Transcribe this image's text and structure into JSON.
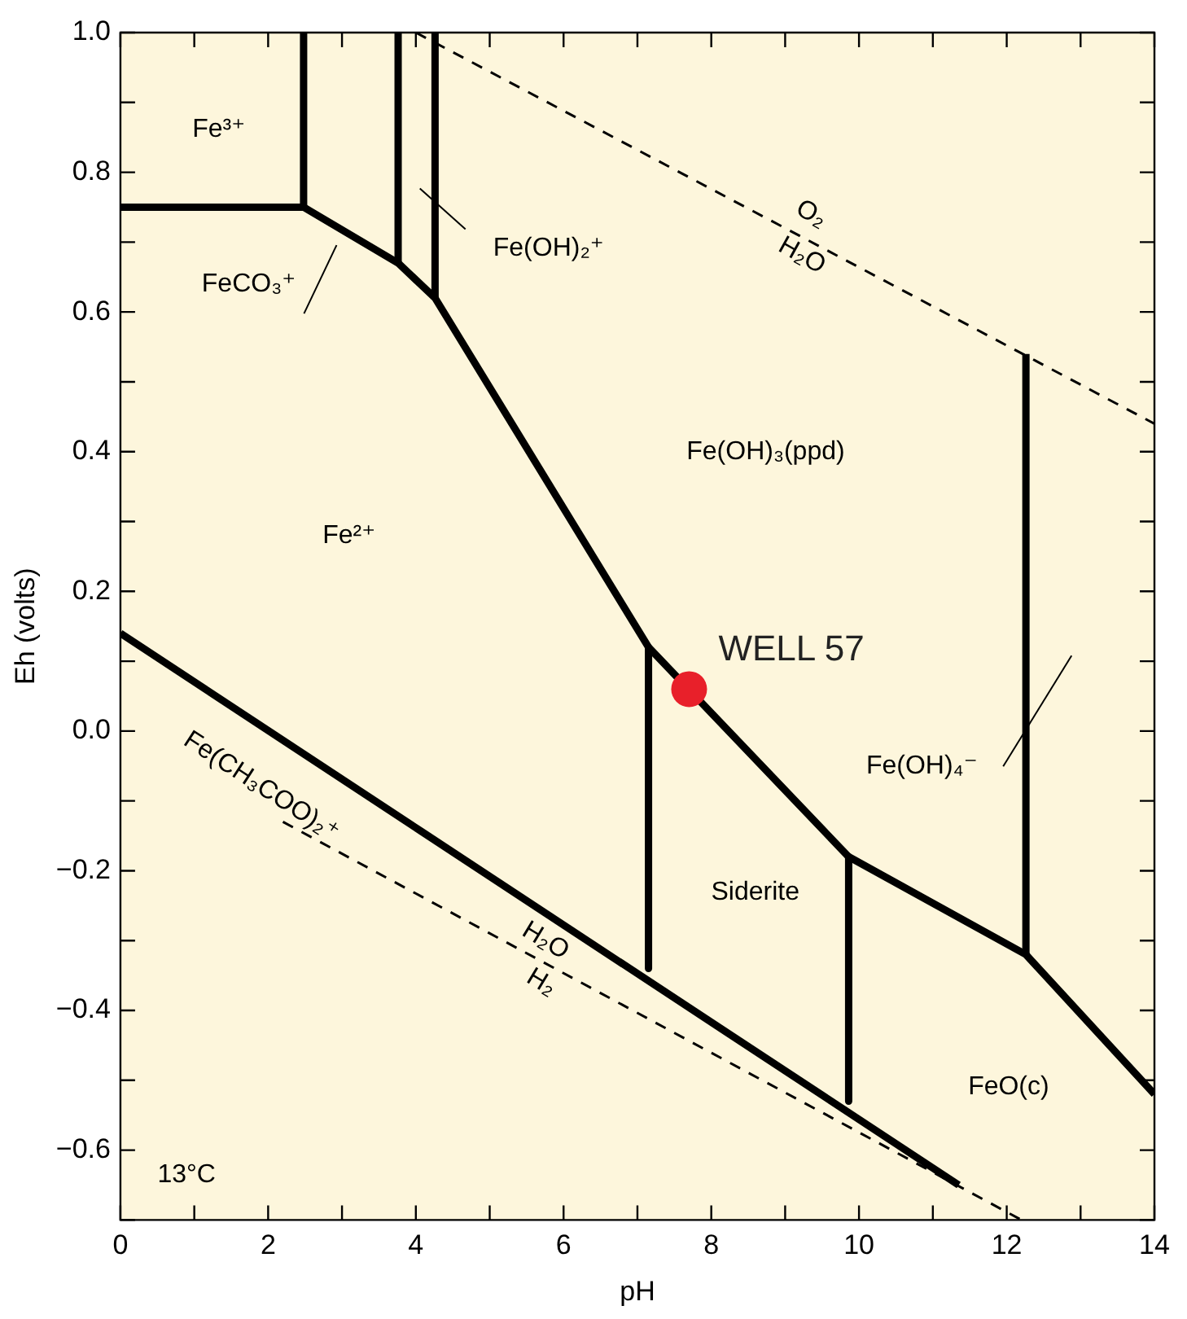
{
  "chart_data": {
    "type": "line",
    "xlabel": "pH",
    "ylabel": "Eh (volts)",
    "xlim": [
      0,
      14
    ],
    "ylim": [
      -0.7,
      1.0
    ],
    "xticks": [
      0,
      {
        "value": 1,
        "label": null
      },
      2,
      {
        "value": 3,
        "label": null
      },
      4,
      {
        "value": 5,
        "label": null
      },
      6,
      {
        "value": 7,
        "label": null
      },
      8,
      {
        "value": 9,
        "label": null
      },
      10,
      {
        "value": 11,
        "label": null
      },
      12,
      {
        "value": 13,
        "label": null
      },
      14
    ],
    "yticks": [
      {
        "value": -0.7,
        "label": null
      },
      {
        "value": -0.6,
        "label": "−0.6"
      },
      {
        "value": -0.5,
        "label": null
      },
      {
        "value": -0.4,
        "label": "−0.4"
      },
      {
        "value": -0.3,
        "label": null
      },
      {
        "value": -0.2,
        "label": "−0.2"
      },
      {
        "value": -0.1,
        "label": null
      },
      {
        "value": 0,
        "label": "0.0"
      },
      {
        "value": 0.1,
        "label": null
      },
      {
        "value": 0.2,
        "label": "0.2"
      },
      {
        "value": 0.3,
        "label": null
      },
      {
        "value": 0.4,
        "label": "0.4"
      },
      {
        "value": 0.5,
        "label": null
      },
      {
        "value": 0.6,
        "label": "0.6"
      },
      {
        "value": 0.7,
        "label": null
      },
      {
        "value": 0.8,
        "label": "0.8"
      },
      {
        "value": 0.9,
        "label": null
      },
      {
        "value": 1.0,
        "label": "1.0"
      }
    ],
    "grid": false,
    "legend": false,
    "marker": "none",
    "line_style": "solid",
    "series": [
      {
        "color": "#000000",
        "x": [
          0,
          2.48,
          3.76,
          4.26,
          7.15,
          9.86,
          12.26,
          14
        ],
        "values": [
          0.75,
          0.75,
          0.67,
          0.62,
          0.12,
          -0.18,
          -0.32,
          -0.52
        ]
      },
      {
        "color": "#000000",
        "x": [
          2.48,
          2.48
        ],
        "values": [
          0.75,
          1.0
        ]
      },
      {
        "color": "#000000",
        "x": [
          3.76,
          3.76
        ],
        "values": [
          0.67,
          1.0
        ]
      },
      {
        "color": "#000000",
        "x": [
          4.26,
          4.26
        ],
        "values": [
          0.62,
          1.0
        ]
      },
      {
        "color": "#000000",
        "x": [
          7.15,
          7.15
        ],
        "values": [
          0.12,
          -0.34
        ]
      },
      {
        "color": "#000000",
        "x": [
          9.86,
          9.86
        ],
        "values": [
          -0.18,
          -0.53
        ]
      },
      {
        "color": "#000000",
        "x": [
          12.26,
          12.26
        ],
        "values": [
          -0.32,
          0.54
        ]
      },
      {
        "color": "#000000",
        "x": [
          0,
          11.35
        ],
        "values": [
          0.14,
          -0.65
        ]
      },
      {
        "color": "#000000",
        "line_style": "dashed",
        "x": [
          4.0,
          14
        ],
        "values": [
          1.0,
          0.44
        ]
      },
      {
        "color": "#000000",
        "line_style": "dashed",
        "x": [
          2.2,
          12.2
        ],
        "values": [
          -0.13,
          -0.7
        ]
      },
      {
        "type": "scatter",
        "name": "WELL 57",
        "color": "#e8202a",
        "marker": "circle",
        "x": [
          7.7
        ],
        "values": [
          0.06
        ]
      }
    ],
    "annotations": [
      "Fe³⁺",
      "FeCO₃⁺",
      "Fe(OH)₂⁺",
      "Fe(OH)₃(ppd)",
      "Fe²⁺",
      "Fe(OH)₄⁻",
      "Siderite",
      "FeO(c)",
      "13°C",
      "O₂",
      "H₂O",
      "Fe(CH₃COO)₂⁺",
      "H₂O",
      "H₂"
    ]
  }
}
